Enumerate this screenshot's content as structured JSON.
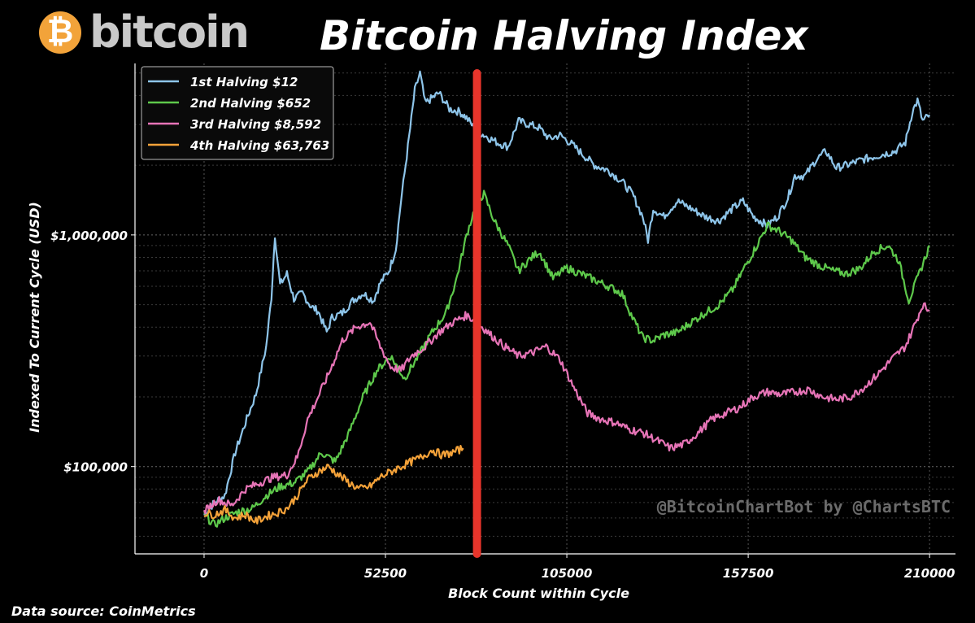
{
  "header": {
    "logo_symbol": "₿",
    "logo_text": "bitcoin",
    "logo_color": "#f2a33a"
  },
  "footer": {
    "source": "Data source: CoinMetrics"
  },
  "chart_data": {
    "type": "line",
    "title": "Bitcoin Halving Index",
    "xlabel": "Block Count within Cycle",
    "ylabel": "Indexed To Current Cycle (USD)",
    "y_scale": "log",
    "xlim": [
      -20000,
      217500
    ],
    "ylim": [
      42000,
      5500000
    ],
    "x_ticks": [
      0,
      52500,
      105000,
      157500,
      210000
    ],
    "x_tick_labels": [
      "0",
      "52500",
      "105000",
      "157500",
      "210000"
    ],
    "y_ticks": [
      100000,
      1000000
    ],
    "y_tick_labels": [
      "$100,000",
      "$1,000,000"
    ],
    "grid": true,
    "legend_position": "top-left",
    "watermark": "@BitcoinChartBot by @ChartsBTC",
    "current_marker_x": 79000,
    "current_marker_color": "#e8352b",
    "series": [
      {
        "name": "1st Halving $12",
        "color": "#8ec5ea",
        "x": [
          0,
          3000,
          6000,
          9000,
          12000,
          15000,
          18000,
          19500,
          20500,
          22000,
          24000,
          26000,
          28500,
          31000,
          33000,
          35500,
          37000,
          40000,
          43000,
          46000,
          49000,
          51000,
          53500,
          55500,
          57000,
          59000,
          61000,
          62500,
          64000,
          66000,
          68000,
          71000,
          74000,
          76000,
          79000,
          81000,
          85000,
          88000,
          91000,
          94000,
          97000,
          100000,
          103000,
          106000,
          110000,
          113000,
          117000,
          121000,
          124000,
          127000,
          128500,
          130000,
          133000,
          137000,
          141000,
          145000,
          149000,
          153000,
          156000,
          159000,
          161000,
          163000,
          166000,
          169000,
          171000,
          174000,
          177000,
          180000,
          183000,
          186000,
          190000,
          195000,
          200000,
          203000,
          205000,
          206500,
          208000,
          210000
        ],
        "y": [
          62000,
          70000,
          75000,
          115000,
          155000,
          205000,
          330000,
          540000,
          1000000,
          610000,
          680000,
          530000,
          560000,
          490000,
          470000,
          380000,
          440000,
          460000,
          520000,
          560000,
          520000,
          620000,
          700000,
          870000,
          1400000,
          2400000,
          4200000,
          5000000,
          3700000,
          3900000,
          4100000,
          3500000,
          3400000,
          3200000,
          2800000,
          2700000,
          2500000,
          2400000,
          3100000,
          3000000,
          2900000,
          2600000,
          2700000,
          2500000,
          2200000,
          2000000,
          1900000,
          1700000,
          1500000,
          1200000,
          950000,
          1300000,
          1200000,
          1400000,
          1300000,
          1200000,
          1150000,
          1300000,
          1400000,
          1200000,
          1150000,
          1100000,
          1200000,
          1450000,
          1800000,
          1800000,
          2100000,
          2300000,
          1950000,
          2000000,
          2100000,
          2200000,
          2300000,
          2500000,
          3400000,
          3800000,
          3100000,
          3300000
        ]
      },
      {
        "name": "2nd Halving $652",
        "color": "#5ec94b",
        "x": [
          0,
          3000,
          6000,
          10000,
          14000,
          18000,
          22000,
          26000,
          30000,
          34000,
          38000,
          42000,
          46000,
          50000,
          54000,
          58000,
          62000,
          66000,
          70000,
          73000,
          76000,
          79000,
          81000,
          84000,
          88000,
          91000,
          94000,
          97000,
          101000,
          105000,
          109000,
          113000,
          117000,
          121000,
          124000,
          127000,
          130000,
          133000,
          137000,
          141000,
          145000,
          149000,
          153000,
          157000,
          160000,
          163000,
          166000,
          170000,
          174000,
          178000,
          182000,
          186000,
          190000,
          194000,
          198000,
          201000,
          204000,
          207000,
          210000
        ],
        "y": [
          62000,
          56000,
          60000,
          64000,
          66000,
          75000,
          82000,
          85000,
          95000,
          115000,
          105000,
          140000,
          200000,
          260000,
          300000,
          240000,
          300000,
          380000,
          460000,
          640000,
          1000000,
          1400000,
          1500000,
          1150000,
          900000,
          700000,
          780000,
          850000,
          650000,
          720000,
          680000,
          640000,
          600000,
          560000,
          440000,
          360000,
          350000,
          370000,
          380000,
          420000,
          460000,
          500000,
          580000,
          750000,
          900000,
          1100000,
          1050000,
          950000,
          800000,
          740000,
          700000,
          680000,
          720000,
          850000,
          900000,
          780000,
          520000,
          680000,
          900000
        ]
      },
      {
        "name": "3rd Halving $8,592",
        "color": "#e774b7",
        "x": [
          0,
          4000,
          8000,
          12000,
          16000,
          20000,
          24000,
          27000,
          30000,
          33000,
          36000,
          40000,
          44000,
          48000,
          51000,
          54000,
          57000,
          60000,
          64000,
          68000,
          72000,
          76000,
          79000,
          83000,
          87000,
          91000,
          95000,
          99000,
          103000,
          107000,
          111000,
          115000,
          119000,
          123000,
          127000,
          131000,
          135000,
          139000,
          143000,
          147000,
          151000,
          155000,
          159000,
          163000,
          167000,
          171000,
          175000,
          179000,
          183000,
          187000,
          191000,
          195000,
          199000,
          203000,
          206000,
          208000,
          210000
        ],
        "y": [
          64000,
          72000,
          68000,
          80000,
          85000,
          90000,
          92000,
          110000,
          160000,
          200000,
          250000,
          350000,
          400000,
          420000,
          330000,
          270000,
          260000,
          300000,
          330000,
          380000,
          420000,
          450000,
          420000,
          370000,
          330000,
          300000,
          310000,
          330000,
          290000,
          220000,
          170000,
          160000,
          155000,
          145000,
          140000,
          130000,
          120000,
          125000,
          140000,
          160000,
          170000,
          180000,
          200000,
          210000,
          205000,
          210000,
          215000,
          200000,
          195000,
          200000,
          220000,
          250000,
          290000,
          330000,
          420000,
          500000,
          470000
        ]
      },
      {
        "name": "4th Halving $63,763",
        "color": "#f4a239",
        "x": [
          0,
          3000,
          6000,
          9000,
          12000,
          15000,
          18000,
          21000,
          24000,
          27000,
          30000,
          33000,
          36000,
          39000,
          42000,
          45000,
          48000,
          51000,
          54000,
          57000,
          60000,
          63000,
          66000,
          69000,
          72000,
          75000
        ],
        "y": [
          63000,
          62000,
          65000,
          60000,
          62000,
          58000,
          61000,
          63000,
          66000,
          75000,
          88000,
          95000,
          100000,
          92000,
          85000,
          80000,
          82000,
          90000,
          95000,
          100000,
          105000,
          110000,
          118000,
          112000,
          115000,
          120000
        ]
      }
    ]
  }
}
